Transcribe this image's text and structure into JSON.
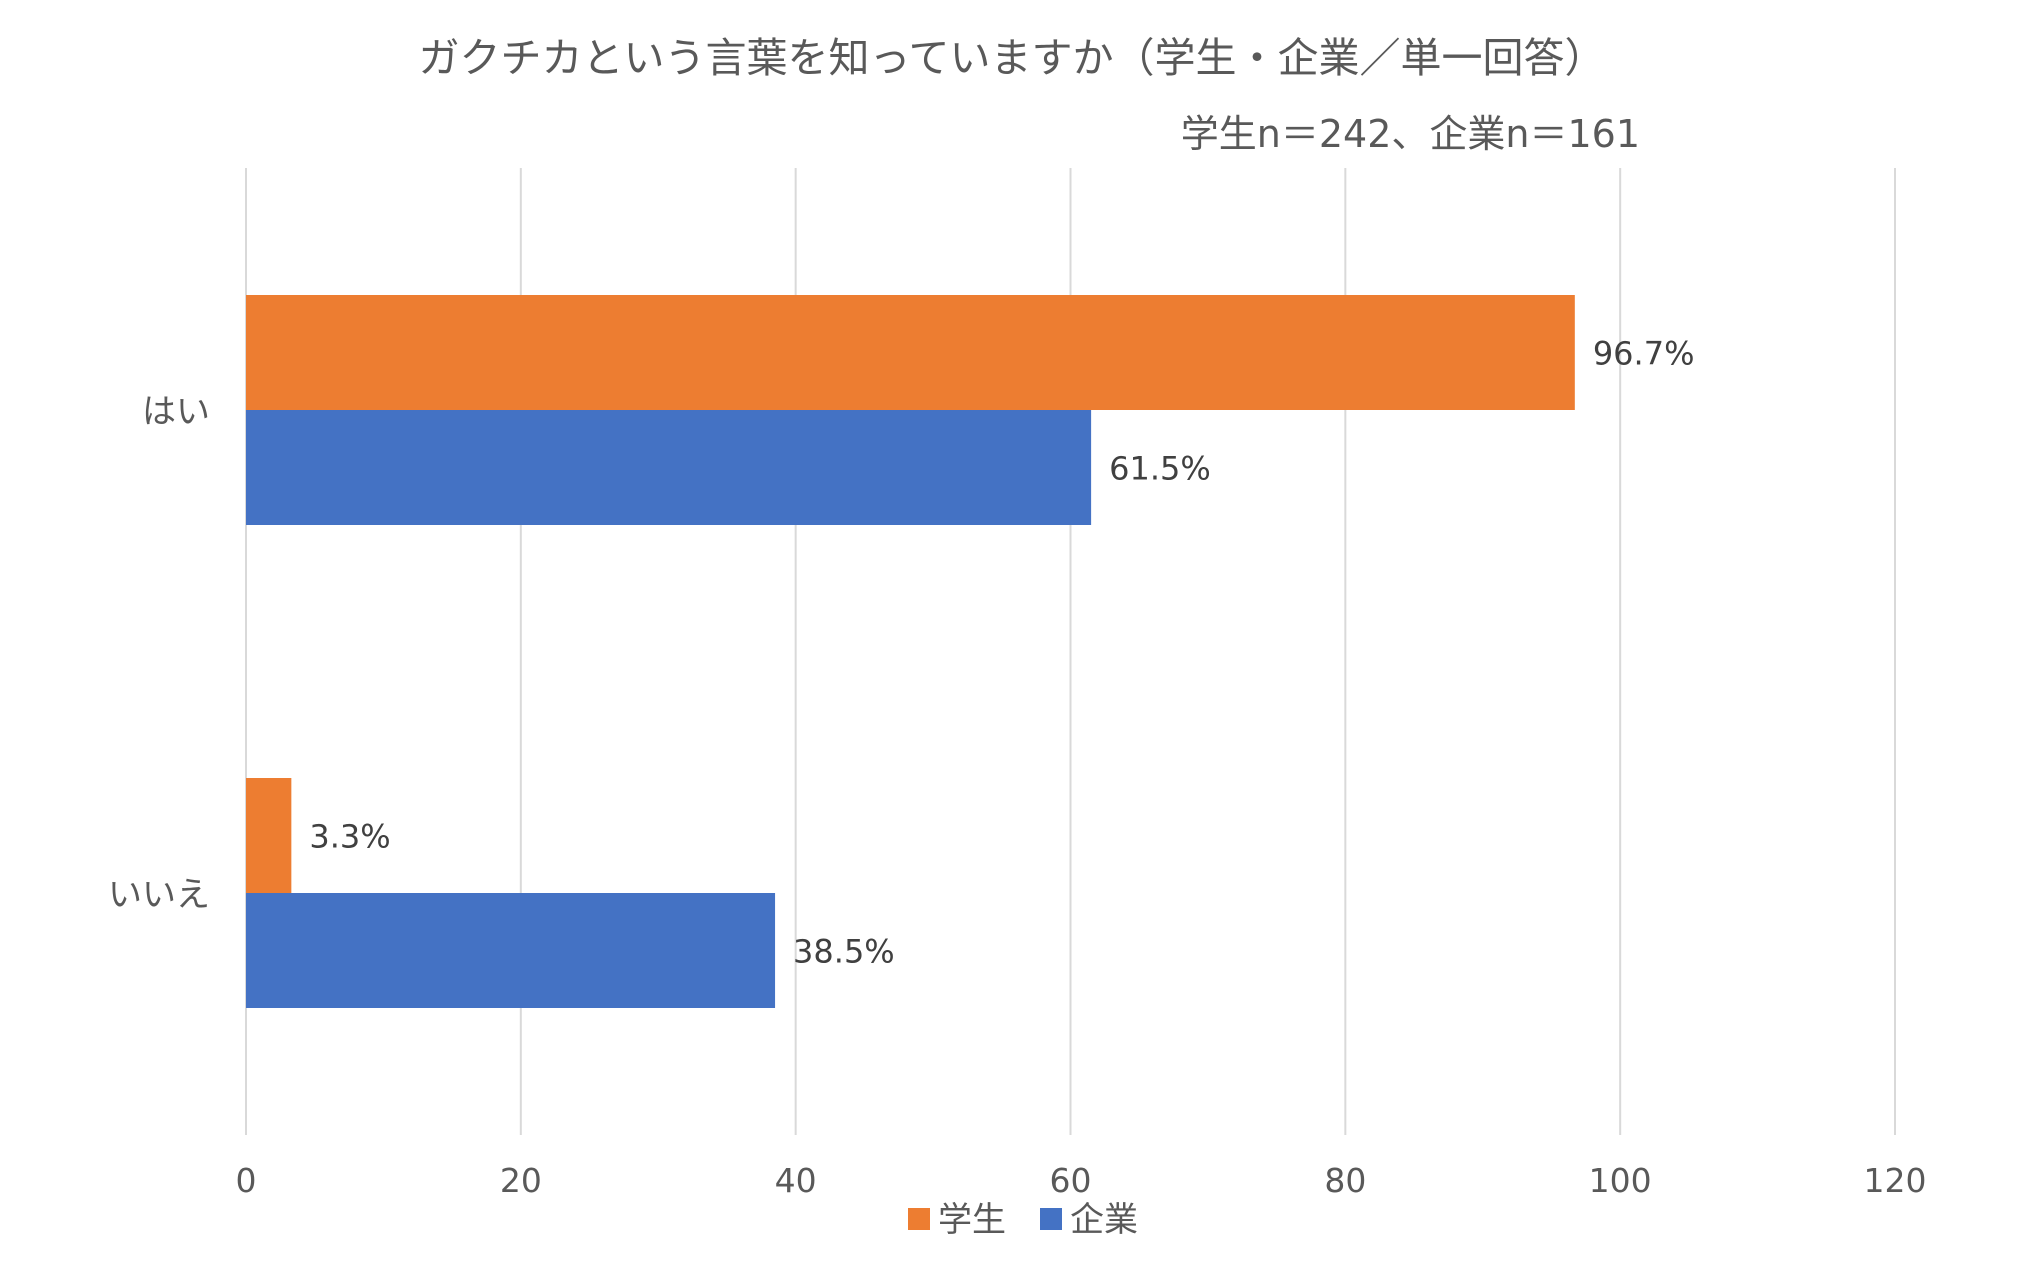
{
  "chart_data": {
    "type": "bar",
    "orientation": "horizontal",
    "title": "ガクチカという言葉を知っていますか（学生・企業／単一回答）",
    "subtitle": "学生n＝242、企業n＝161",
    "xlabel": "",
    "ylabel": "",
    "xlim": [
      0,
      120
    ],
    "x_ticks": [
      "0",
      "20",
      "40",
      "60",
      "80",
      "100",
      "120"
    ],
    "grid": "vertical",
    "legend_position": "bottom",
    "categories": [
      "はい",
      "いいえ"
    ],
    "series": [
      {
        "name": "学生",
        "color": "#ED7D31",
        "values": [
          96.7,
          3.3
        ],
        "labels": [
          "96.7%",
          "3.3%"
        ]
      },
      {
        "name": "企業",
        "color": "#4472C4",
        "values": [
          61.5,
          38.5
        ],
        "labels": [
          "61.5%",
          "38.5%"
        ]
      }
    ]
  }
}
